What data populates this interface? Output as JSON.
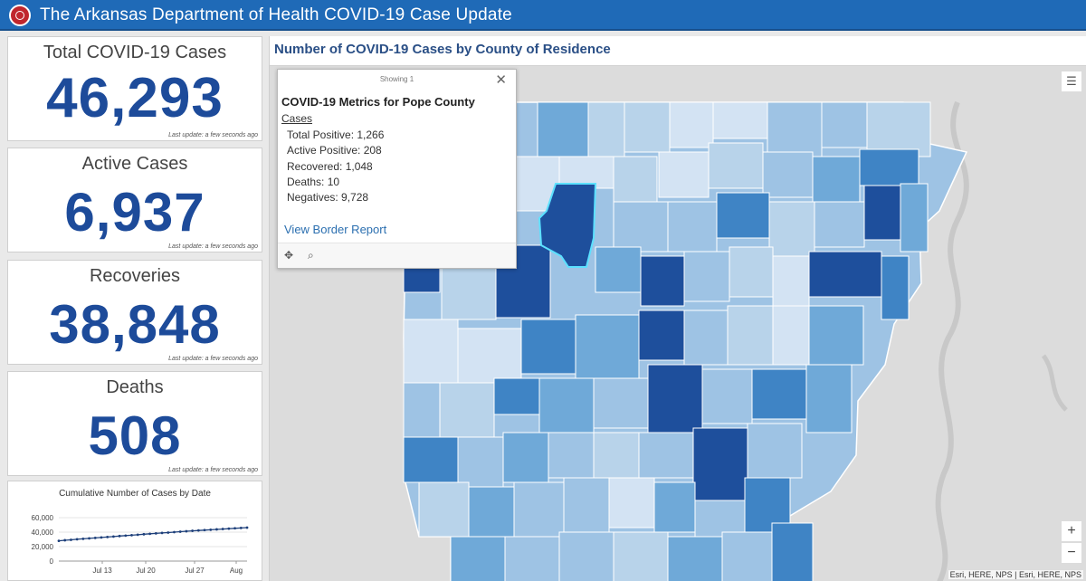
{
  "header": {
    "title": "The Arkansas Department of Health COVID-19 Case Update",
    "color": "#1f6ab7"
  },
  "cards": [
    {
      "label": "Total COVID-19 Cases",
      "value": "46,293",
      "updated": "Last update: a few seconds ago"
    },
    {
      "label": "Active Cases",
      "value": "6,937",
      "updated": "Last update: a few seconds ago"
    },
    {
      "label": "Recoveries",
      "value": "38,848",
      "updated": "Last update: a few seconds ago"
    },
    {
      "label": "Deaths",
      "value": "508",
      "updated": "Last update: a few seconds ago"
    }
  ],
  "chart_data": {
    "type": "line",
    "title": "Cumulative Number of Cases by Date",
    "xlabel": "",
    "ylabel": "",
    "ylim": [
      0,
      60000
    ],
    "y_ticks": [
      "60,000",
      "40,000",
      "20,000",
      "0"
    ],
    "x_ticks": [
      "Jul 13",
      "Jul 20",
      "Jul 27",
      "Aug"
    ],
    "x": [
      1,
      2,
      3,
      4,
      5,
      6,
      7,
      8,
      9,
      10,
      11,
      12,
      13,
      14,
      15,
      16,
      17,
      18,
      19,
      20,
      21,
      22,
      23,
      24,
      25,
      26,
      27,
      28,
      29,
      30,
      31,
      32
    ],
    "values": [
      28000,
      28800,
      29400,
      30100,
      30800,
      31400,
      32000,
      32600,
      33300,
      33900,
      34600,
      35200,
      35800,
      36400,
      37100,
      37700,
      38300,
      38900,
      39400,
      40000,
      40600,
      41200,
      41800,
      42300,
      42800,
      43300,
      43800,
      44300,
      44800,
      45300,
      45800,
      46293
    ]
  },
  "map": {
    "title": "Number of COVID-19 Cases by County of Residence",
    "attribution": "Esri, HERE, NPS | Esri, HERE, NPS",
    "zoom_in": "+",
    "zoom_out": "−",
    "list_icon": "☰"
  },
  "popup": {
    "showing": "Showing 1",
    "close": "✕",
    "title": "COVID-19 Metrics for Pope County",
    "section": "Cases",
    "metrics": [
      "Total Positive: 1,266",
      "Active Positive: 208",
      "Recovered: 1,048",
      "Deaths: 10",
      "Negatives: 9,728"
    ],
    "link": "View Border Report",
    "pan_icon": "✥",
    "zoom_icon": "⌕"
  },
  "palette": [
    "#d3e3f3",
    "#b8d3ea",
    "#9ec3e4",
    "#6fa9d8",
    "#3f84c5",
    "#1e4f9c"
  ]
}
